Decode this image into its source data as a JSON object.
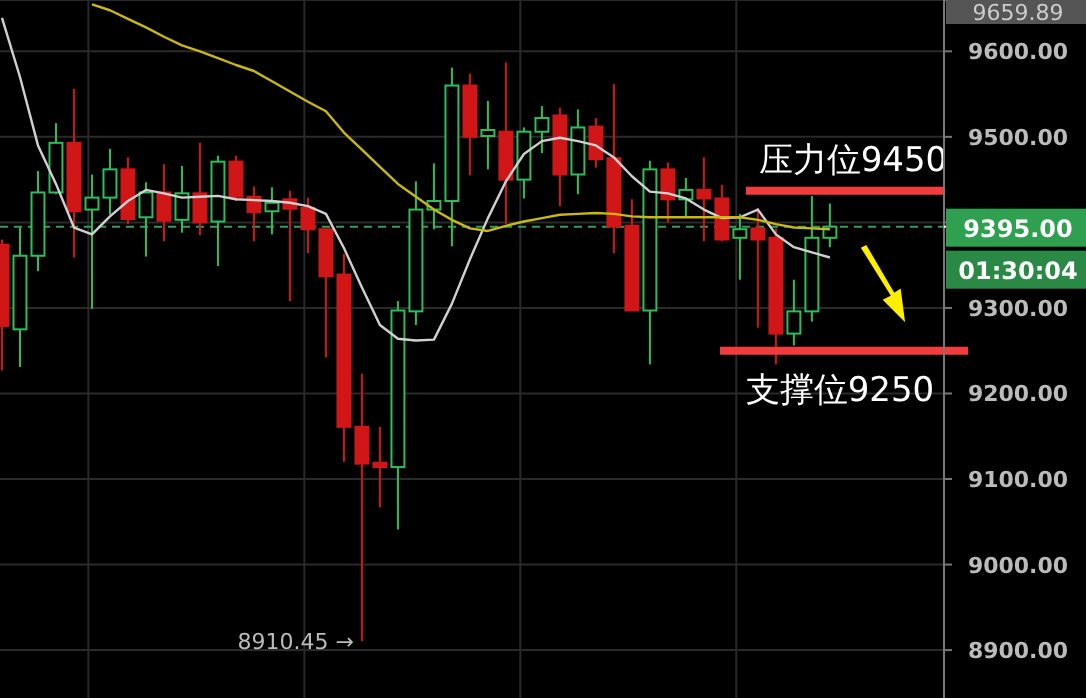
{
  "chart_data": {
    "type": "candlestick",
    "categories": [
      null,
      null,
      null,
      null,
      null,
      null,
      null,
      null,
      null,
      null,
      null,
      null,
      null,
      null,
      null,
      null,
      null,
      null,
      null,
      null,
      null,
      null,
      null,
      null,
      null,
      null,
      null,
      null,
      null,
      null,
      null,
      null,
      null,
      null,
      null,
      null,
      null,
      null,
      null,
      null,
      null,
      null,
      null,
      null,
      null,
      null,
      null
    ],
    "ohlc": [
      [
        9374,
        9380,
        9227,
        9279
      ],
      [
        9275,
        9394,
        9231,
        9361
      ],
      [
        9361,
        9460,
        9343,
        9435
      ],
      [
        9435,
        9516,
        9433,
        9493
      ],
      [
        9493,
        9556,
        9359,
        9413
      ],
      [
        9415,
        9456,
        9299,
        9429
      ],
      [
        9429,
        9486,
        9409,
        9462
      ],
      [
        9462,
        9476,
        9398,
        9404
      ],
      [
        9406,
        9447,
        9360,
        9435
      ],
      [
        9435,
        9468,
        9378,
        9402
      ],
      [
        9403,
        9466,
        9388,
        9434
      ],
      [
        9434,
        9493,
        9385,
        9400
      ],
      [
        9401,
        9478,
        9349,
        9471
      ],
      [
        9471,
        9478,
        9425,
        9430
      ],
      [
        9430,
        9442,
        9378,
        9412
      ],
      [
        9413,
        9441,
        9386,
        9423
      ],
      [
        9427,
        9437,
        9308,
        9416
      ],
      [
        9417,
        9429,
        9364,
        9392
      ],
      [
        9392,
        9392,
        9242,
        9337
      ],
      [
        9339,
        9363,
        9120,
        9161
      ],
      [
        9161,
        9223,
        8910.45,
        9118
      ],
      [
        9119,
        9161,
        9067,
        9114
      ],
      [
        9114,
        9308,
        9041,
        9297
      ],
      [
        9296,
        9448,
        9280,
        9415
      ],
      [
        9415,
        9469,
        9392,
        9425
      ],
      [
        9425,
        9581,
        9372,
        9560
      ],
      [
        9560,
        9574,
        9455,
        9500
      ],
      [
        9501,
        9542,
        9462,
        9508
      ],
      [
        9506,
        9587,
        9398,
        9450
      ],
      [
        9450,
        9511,
        9428,
        9506
      ],
      [
        9506,
        9536,
        9481,
        9522
      ],
      [
        9525,
        9534,
        9419,
        9456
      ],
      [
        9456,
        9532,
        9433,
        9511
      ],
      [
        9512,
        9522,
        9464,
        9474
      ],
      [
        9475,
        9562,
        9364,
        9395
      ],
      [
        9396,
        9427,
        9297,
        9297
      ],
      [
        9297,
        9472,
        9234,
        9462
      ],
      [
        9462,
        9470,
        9400,
        9427
      ],
      [
        9427,
        9452,
        9406,
        9438
      ],
      [
        9438,
        9476,
        9378,
        9428
      ],
      [
        9428,
        9444,
        9378,
        9380
      ],
      [
        9382,
        9410,
        9333,
        9392
      ],
      [
        9393,
        9417,
        9277,
        9380
      ],
      [
        9382,
        9393,
        9234,
        9270
      ],
      [
        9270,
        9333,
        9256,
        9296
      ],
      [
        9296,
        9431,
        9284,
        9382
      ],
      [
        9382,
        9422,
        9371,
        9395
      ]
    ],
    "colors": [
      "#d01616",
      "#2ebd5a",
      "#2ebd5a",
      "#2ebd5a",
      "#d01616",
      "#2ebd5a",
      "#2ebd5a",
      "#d01616",
      "#2ebd5a",
      "#d01616",
      "#2ebd5a",
      "#d01616",
      "#2ebd5a",
      "#d01616",
      "#d01616",
      "#2ebd5a",
      "#d01616",
      "#d01616",
      "#d01616",
      "#d01616",
      "#d01616",
      "#d01616",
      "#2ebd5a",
      "#2ebd5a",
      "#2ebd5a",
      "#2ebd5a",
      "#d01616",
      "#2ebd5a",
      "#d01616",
      "#2ebd5a",
      "#2ebd5a",
      "#d01616",
      "#2ebd5a",
      "#d01616",
      "#d01616",
      "#d01616",
      "#2ebd5a",
      "#d01616",
      "#2ebd5a",
      "#d01616",
      "#d01616",
      "#2ebd5a",
      "#d01616",
      "#d01616",
      "#2ebd5a",
      "#2ebd5a",
      "#2ebd5a"
    ],
    "series": [
      {
        "type": "line",
        "color": "#d0d0d0",
        "values": [
          9639,
          9570,
          9490,
          9445,
          9394,
          9386,
          9407,
          9425,
          9438,
          9434,
          9429,
          9430,
          9431,
          9427,
          9426,
          9425,
          9423,
          9419,
          9410,
          9370,
          9324,
          9280,
          9264,
          9262,
          9263,
          9305,
          9357,
          9405,
          9448,
          9480,
          9495,
          9499,
          9495,
          9490,
          9476,
          9454,
          9436,
          9434,
          9428,
          9415,
          9405,
          9406,
          9415,
          9386,
          9371,
          9365,
          9359
        ]
      },
      {
        "type": "line",
        "color": "#c9b814",
        "values": [
          null,
          null,
          null,
          null,
          null,
          9655,
          9648,
          9638,
          9628,
          9617,
          9607,
          9600,
          9592,
          9584,
          9577,
          9565,
          9553,
          9541,
          9530,
          9505,
          9485,
          9465,
          9445,
          9430,
          9415,
          9403,
          9393,
          9390,
          9396,
          9401,
          9405,
          9409,
          9410,
          9411,
          9410,
          9407,
          9406,
          9406,
          9406,
          9406,
          9406,
          9406,
          9403,
          9398,
          9394,
          9393,
          9392
        ]
      }
    ],
    "ylim": [
      8844,
      9660
    ],
    "yticks": [
      {
        "value": 8900,
        "label": "8900.00"
      },
      {
        "value": 9000,
        "label": "9000.00"
      },
      {
        "value": 9100,
        "label": "9100.00"
      },
      {
        "value": 9200,
        "label": "9200.00"
      },
      {
        "value": 9300,
        "label": "9300.00"
      },
      {
        "value": 9400,
        "label": null
      },
      {
        "value": 9500,
        "label": "9500.00"
      },
      {
        "value": 9600,
        "label": "9600.00"
      },
      {
        "value": 9659.89,
        "label": "9659.89"
      }
    ],
    "tick_labels": "y",
    "grid": true,
    "ref_lines": [
      {
        "axis": "y",
        "value": 9395,
        "label": "9395.00",
        "color": "#2ea04f",
        "line_style": "dashed"
      },
      {
        "axis": "y",
        "value": 9437,
        "label": "压力位9450",
        "color": "#f23b3b"
      },
      {
        "axis": "y",
        "value": 9250,
        "label": "支撑位9250",
        "color": "#f23b3b"
      }
    ],
    "annotations": [
      "01:30:04",
      "8910.45 →"
    ]
  }
}
